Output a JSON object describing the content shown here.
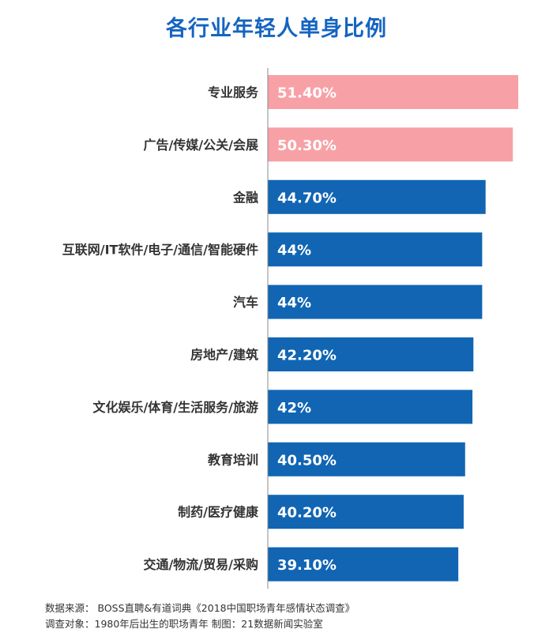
{
  "colors": {
    "title": "#1565c0",
    "highlight": "#f7a1a6",
    "default": "#1165b3",
    "axis": "#888888",
    "label": "#333333",
    "value_text": "#ffffff"
  },
  "chart_data": {
    "type": "bar",
    "orientation": "horizontal",
    "title": "各行业年轻人单身比例",
    "categories": [
      "专业服务",
      "广告/传媒/公关/会展",
      "金融",
      "互联网/IT软件/电子/通信/智能硬件",
      "汽车",
      "房地产/建筑",
      "文化娱乐/体育/生活服务/旅游",
      "教育培训",
      "制药/医疗健康",
      "交通/物流/贸易/采购"
    ],
    "values": [
      51.4,
      50.3,
      44.7,
      44,
      44,
      42.2,
      42,
      40.5,
      40.2,
      39.1
    ],
    "value_labels": [
      "51.40%",
      "50.30%",
      "44.70%",
      "44%",
      "44%",
      "42.20%",
      "42%",
      "40.50%",
      "40.20%",
      "39.10%"
    ],
    "highlight": [
      true,
      true,
      false,
      false,
      false,
      false,
      false,
      false,
      false,
      false
    ],
    "xlim": [
      0,
      51.4
    ],
    "grid": false,
    "legend": "none"
  },
  "footer": {
    "source": "数据来源：  BOSS直聘&有道词典《2018中国职场青年感情状态调查》",
    "survey": "调查对象：1980年后出生的职场青年    制图：21数据新闻实验室"
  }
}
